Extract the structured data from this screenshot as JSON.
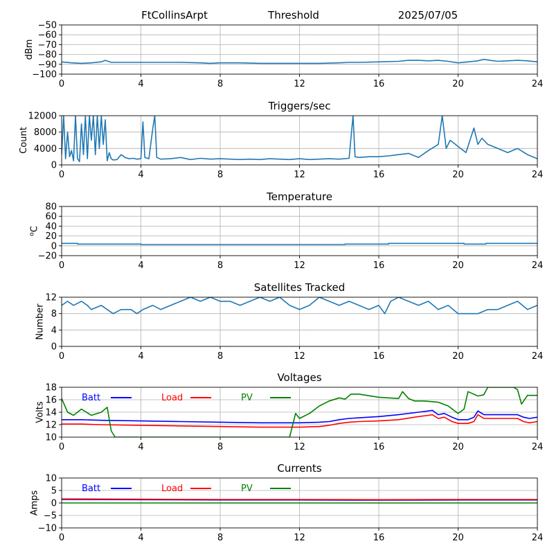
{
  "header": {
    "station": "FtCollinsArpt",
    "mode": "Threshold",
    "date": "2025/07/05"
  },
  "colors": {
    "default_line": "#1f77b4",
    "batt": "#0000ff",
    "load": "#ff0000",
    "pv": "#008000",
    "grid": "#b0b0b0"
  },
  "chart_data": [
    {
      "id": "threshold",
      "type": "line",
      "title": "",
      "xlabel": "",
      "ylabel": "dBm",
      "xlim": [
        0,
        24
      ],
      "ylim": [
        -100,
        -50
      ],
      "xticks": [
        0,
        4,
        8,
        12,
        16,
        20,
        24
      ],
      "yticks": [
        -100,
        -90,
        -80,
        -70,
        -60,
        -50
      ],
      "grid": true,
      "series": [
        {
          "color": "#1f77b4",
          "x": [
            0,
            0.5,
            1,
            1.5,
            2,
            2.2,
            2.5,
            3,
            4,
            5,
            6,
            7,
            7.5,
            8,
            9,
            10,
            11,
            12,
            13,
            14,
            14.5,
            15,
            16,
            17,
            17.5,
            18,
            18.5,
            19,
            19.5,
            20,
            20.5,
            21,
            21.3,
            21.6,
            22,
            22.5,
            23,
            23.5,
            24
          ],
          "y": [
            -87.5,
            -88.5,
            -89,
            -88.5,
            -87.5,
            -86,
            -88,
            -88,
            -88,
            -88,
            -88,
            -88.5,
            -89,
            -88.5,
            -88.5,
            -89,
            -89,
            -89,
            -89,
            -88.5,
            -88,
            -88,
            -87.5,
            -87,
            -86,
            -86,
            -86.5,
            -86,
            -87,
            -88.5,
            -87.5,
            -86.5,
            -85,
            -86,
            -87,
            -86.5,
            -86,
            -86.5,
            -87.5
          ]
        }
      ]
    },
    {
      "id": "triggers",
      "type": "line",
      "title": "Triggers/sec",
      "xlabel": "",
      "ylabel": "Count",
      "xlim": [
        0,
        24
      ],
      "ylim": [
        0,
        12000
      ],
      "xticks": [
        0,
        4,
        8,
        12,
        16,
        20,
        24
      ],
      "yticks": [
        0,
        4000,
        8000,
        12000
      ],
      "grid": true,
      "series": [
        {
          "color": "#1f77b4",
          "x": [
            0,
            0.1,
            0.2,
            0.3,
            0.4,
            0.5,
            0.6,
            0.7,
            0.8,
            0.9,
            1.0,
            1.1,
            1.2,
            1.3,
            1.4,
            1.5,
            1.6,
            1.7,
            1.8,
            1.9,
            2.0,
            2.1,
            2.2,
            2.3,
            2.4,
            2.5,
            2.6,
            2.8,
            3.0,
            3.2,
            3.4,
            3.6,
            3.8,
            4.0,
            4.1,
            4.2,
            4.4,
            4.6,
            4.7,
            4.8,
            5.0,
            5.5,
            6.0,
            6.5,
            7.0,
            7.5,
            8.0,
            8.5,
            9.0,
            9.5,
            10.0,
            10.5,
            11.0,
            11.5,
            12.0,
            12.5,
            13.0,
            13.5,
            14.0,
            14.5,
            14.7,
            14.8,
            15.0,
            15.5,
            16.0,
            16.5,
            17.0,
            17.5,
            18.0,
            18.5,
            19.0,
            19.2,
            19.4,
            19.6,
            20.0,
            20.4,
            20.8,
            21.0,
            21.2,
            21.5,
            22.0,
            22.5,
            23.0,
            23.5,
            24.0
          ],
          "y": [
            2500,
            12000,
            1500,
            8000,
            2000,
            3500,
            1000,
            12000,
            1500,
            800,
            10000,
            2500,
            12000,
            1500,
            12000,
            6000,
            12000,
            2500,
            12000,
            4000,
            12000,
            5000,
            11000,
            1000,
            3000,
            1500,
            1200,
            1300,
            2500,
            1800,
            1500,
            1600,
            1400,
            1500,
            10500,
            1800,
            1500,
            9000,
            12000,
            1800,
            1400,
            1500,
            1800,
            1300,
            1600,
            1400,
            1500,
            1400,
            1300,
            1400,
            1300,
            1500,
            1400,
            1300,
            1500,
            1300,
            1400,
            1500,
            1400,
            1600,
            12000,
            2000,
            1800,
            2000,
            2000,
            2200,
            2500,
            2800,
            1800,
            3500,
            5000,
            12000,
            4000,
            6000,
            4500,
            3000,
            9000,
            5000,
            6500,
            5000,
            4000,
            3000,
            4000,
            2500,
            1500
          ]
        }
      ]
    },
    {
      "id": "temperature",
      "type": "line",
      "title": "Temperature",
      "xlabel": "",
      "ylabel": "°C",
      "xlim": [
        0,
        24
      ],
      "ylim": [
        -20,
        80
      ],
      "xticks": [
        0,
        4,
        8,
        12,
        16,
        20,
        24
      ],
      "yticks": [
        -20,
        0,
        20,
        40,
        60,
        80
      ],
      "grid": true,
      "series": [
        {
          "color": "#1f77b4",
          "x": [
            0,
            0.8,
            0.8,
            4,
            4,
            14.3,
            14.3,
            16.5,
            16.5,
            20.3,
            20.3,
            21.4,
            21.4,
            24
          ],
          "y": [
            5,
            5,
            3.5,
            3.5,
            2.5,
            2.5,
            3.5,
            3.5,
            5,
            5,
            3.5,
            3.5,
            5,
            5
          ]
        }
      ]
    },
    {
      "id": "satellites",
      "type": "line",
      "title": "Satellites Tracked",
      "xlabel": "",
      "ylabel": "Number",
      "xlim": [
        0,
        24
      ],
      "ylim": [
        0,
        12
      ],
      "xticks": [
        0,
        4,
        8,
        12,
        16,
        20,
        24
      ],
      "yticks": [
        0,
        4,
        8,
        12
      ],
      "grid": true,
      "series": [
        {
          "color": "#1f77b4",
          "x": [
            0,
            0.3,
            0.6,
            1.0,
            1.3,
            1.5,
            2.0,
            2.3,
            2.6,
            3.0,
            3.5,
            3.8,
            4.1,
            4.6,
            5.0,
            5.5,
            6.0,
            6.5,
            7.0,
            7.5,
            8.0,
            8.5,
            9.0,
            9.5,
            10.0,
            10.5,
            11.0,
            11.5,
            12.0,
            12.5,
            13.0,
            13.5,
            14.0,
            14.5,
            15.0,
            15.5,
            16.0,
            16.3,
            16.6,
            17.0,
            17.5,
            18.0,
            18.5,
            19.0,
            19.5,
            20.0,
            20.5,
            21.0,
            21.5,
            22.0,
            22.5,
            23.0,
            23.5,
            24.0
          ],
          "y": [
            10,
            11,
            10,
            11,
            10,
            9,
            10,
            9,
            8,
            9,
            9,
            8,
            9,
            10,
            9,
            10,
            11,
            12,
            11,
            12,
            11,
            11,
            10,
            11,
            12,
            11,
            12,
            10,
            9,
            10,
            12,
            11,
            10,
            11,
            10,
            9,
            10,
            8,
            11,
            12,
            11,
            10,
            11,
            9,
            10,
            8,
            8,
            8,
            9,
            9,
            10,
            11,
            9,
            10
          ]
        }
      ]
    },
    {
      "id": "voltages",
      "type": "line",
      "title": "Voltages",
      "xlabel": "",
      "ylabel": "Volts",
      "xlim": [
        0,
        24
      ],
      "ylim": [
        10,
        18
      ],
      "xticks": [
        0,
        4,
        8,
        12,
        16,
        20,
        24
      ],
      "yticks": [
        10,
        12,
        14,
        16,
        18
      ],
      "grid": true,
      "legend": "top-left",
      "series": [
        {
          "name": "Batt",
          "color": "#0000ff",
          "x": [
            0,
            1,
            2,
            4,
            6,
            8,
            10,
            11,
            12,
            13,
            13.5,
            14,
            14.5,
            15,
            16,
            17,
            18,
            18.5,
            18.7,
            19,
            19.3,
            19.7,
            20,
            20.5,
            20.8,
            21,
            21.3,
            22,
            23,
            23.3,
            23.6,
            24
          ],
          "y": [
            12.8,
            12.8,
            12.7,
            12.6,
            12.5,
            12.4,
            12.3,
            12.3,
            12.3,
            12.4,
            12.5,
            12.8,
            13.0,
            13.1,
            13.3,
            13.6,
            14.0,
            14.2,
            14.3,
            13.6,
            13.8,
            13.2,
            12.8,
            12.8,
            13.2,
            14.2,
            13.6,
            13.6,
            13.6,
            13.2,
            13.0,
            13.2
          ]
        },
        {
          "name": "Load",
          "color": "#ff0000",
          "x": [
            0,
            1,
            2,
            4,
            6,
            8,
            10,
            11,
            12,
            13,
            13.5,
            14,
            14.5,
            15,
            16,
            17,
            18,
            18.5,
            18.7,
            19,
            19.3,
            19.7,
            20,
            20.5,
            20.8,
            21,
            21.3,
            22,
            23,
            23.3,
            23.6,
            24
          ],
          "y": [
            12.1,
            12.1,
            12.0,
            11.9,
            11.8,
            11.7,
            11.6,
            11.6,
            11.6,
            11.7,
            11.9,
            12.2,
            12.4,
            12.5,
            12.6,
            12.8,
            13.3,
            13.5,
            13.6,
            13.0,
            13.2,
            12.5,
            12.2,
            12.2,
            12.5,
            13.6,
            13.0,
            13.0,
            13.0,
            12.5,
            12.3,
            12.5
          ]
        },
        {
          "name": "PV",
          "color": "#008000",
          "x": [
            0,
            0.3,
            0.6,
            1.0,
            1.5,
            2.0,
            2.3,
            2.5,
            2.7,
            11.5,
            11.8,
            12.0,
            12.5,
            13,
            13.5,
            14,
            14.3,
            14.6,
            15,
            16,
            17,
            17.2,
            17.5,
            17.8,
            18.3,
            19,
            19.5,
            20,
            20.3,
            20.5,
            21,
            21.3,
            21.5,
            22.8,
            23,
            23.2,
            23.5,
            24
          ],
          "y": [
            16.2,
            14.0,
            13.5,
            14.5,
            13.5,
            14.0,
            14.8,
            11.0,
            10.0,
            10.0,
            13.8,
            13.0,
            13.8,
            15.0,
            15.8,
            16.3,
            16.1,
            16.9,
            16.9,
            16.4,
            16.2,
            17.3,
            16.2,
            15.8,
            15.8,
            15.6,
            15.0,
            13.8,
            14.5,
            17.3,
            16.6,
            16.8,
            18.0,
            18.0,
            17.6,
            15.3,
            16.7,
            16.7
          ]
        }
      ]
    },
    {
      "id": "currents",
      "type": "line",
      "title": "Currents",
      "xlabel": "",
      "ylabel": "Amps",
      "xlim": [
        0,
        24
      ],
      "ylim": [
        -10,
        10
      ],
      "xticks": [
        0,
        4,
        8,
        12,
        16,
        20,
        24
      ],
      "yticks": [
        -10,
        -5,
        0,
        5,
        10
      ],
      "grid": true,
      "legend": "top-left",
      "series": [
        {
          "name": "Batt",
          "color": "#0000ff",
          "x": [
            0,
            4,
            8,
            12,
            16,
            20,
            24
          ],
          "y": [
            1.4,
            1.3,
            1.2,
            1.2,
            1.1,
            1.2,
            1.2
          ]
        },
        {
          "name": "Load",
          "color": "#ff0000",
          "x": [
            0,
            4,
            8,
            12,
            16,
            20,
            24
          ],
          "y": [
            1.6,
            1.5,
            1.4,
            1.4,
            1.3,
            1.4,
            1.4
          ]
        },
        {
          "name": "PV",
          "color": "#008000",
          "x": [
            0,
            4,
            8,
            12,
            16,
            20,
            24
          ],
          "y": [
            0,
            0,
            0,
            0,
            0,
            0,
            0
          ]
        }
      ]
    }
  ]
}
